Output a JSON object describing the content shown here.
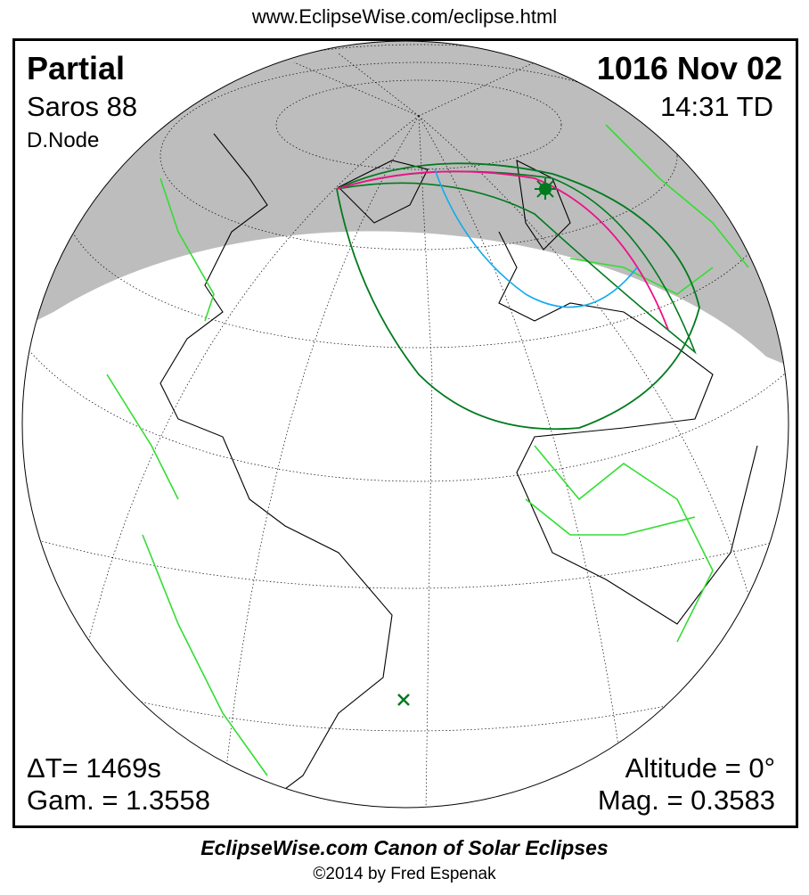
{
  "header": {
    "url": "www.EclipseWise.com/eclipse.html"
  },
  "eclipse": {
    "type": "Partial",
    "saros": "Saros  88",
    "node": "D.Node",
    "date": "1016 Nov 02",
    "time": "14:31 TD",
    "delta_t": "ΔT=   1469s",
    "gamma": "Gam. = 1.3558",
    "altitude": "Altitude =  0°",
    "magnitude": "Mag. = 0.3583"
  },
  "footer": {
    "title": "EclipseWise.com Canon of Solar Eclipses",
    "copyright": "©2014 by Fred Espenak"
  },
  "colors": {
    "night": "#bdbdbd",
    "borders": "#33dd33",
    "penumbral_limits": "#007a1e",
    "max_eclipse_curve": "#ee1188",
    "sunrise_curve": "#11aaee"
  }
}
